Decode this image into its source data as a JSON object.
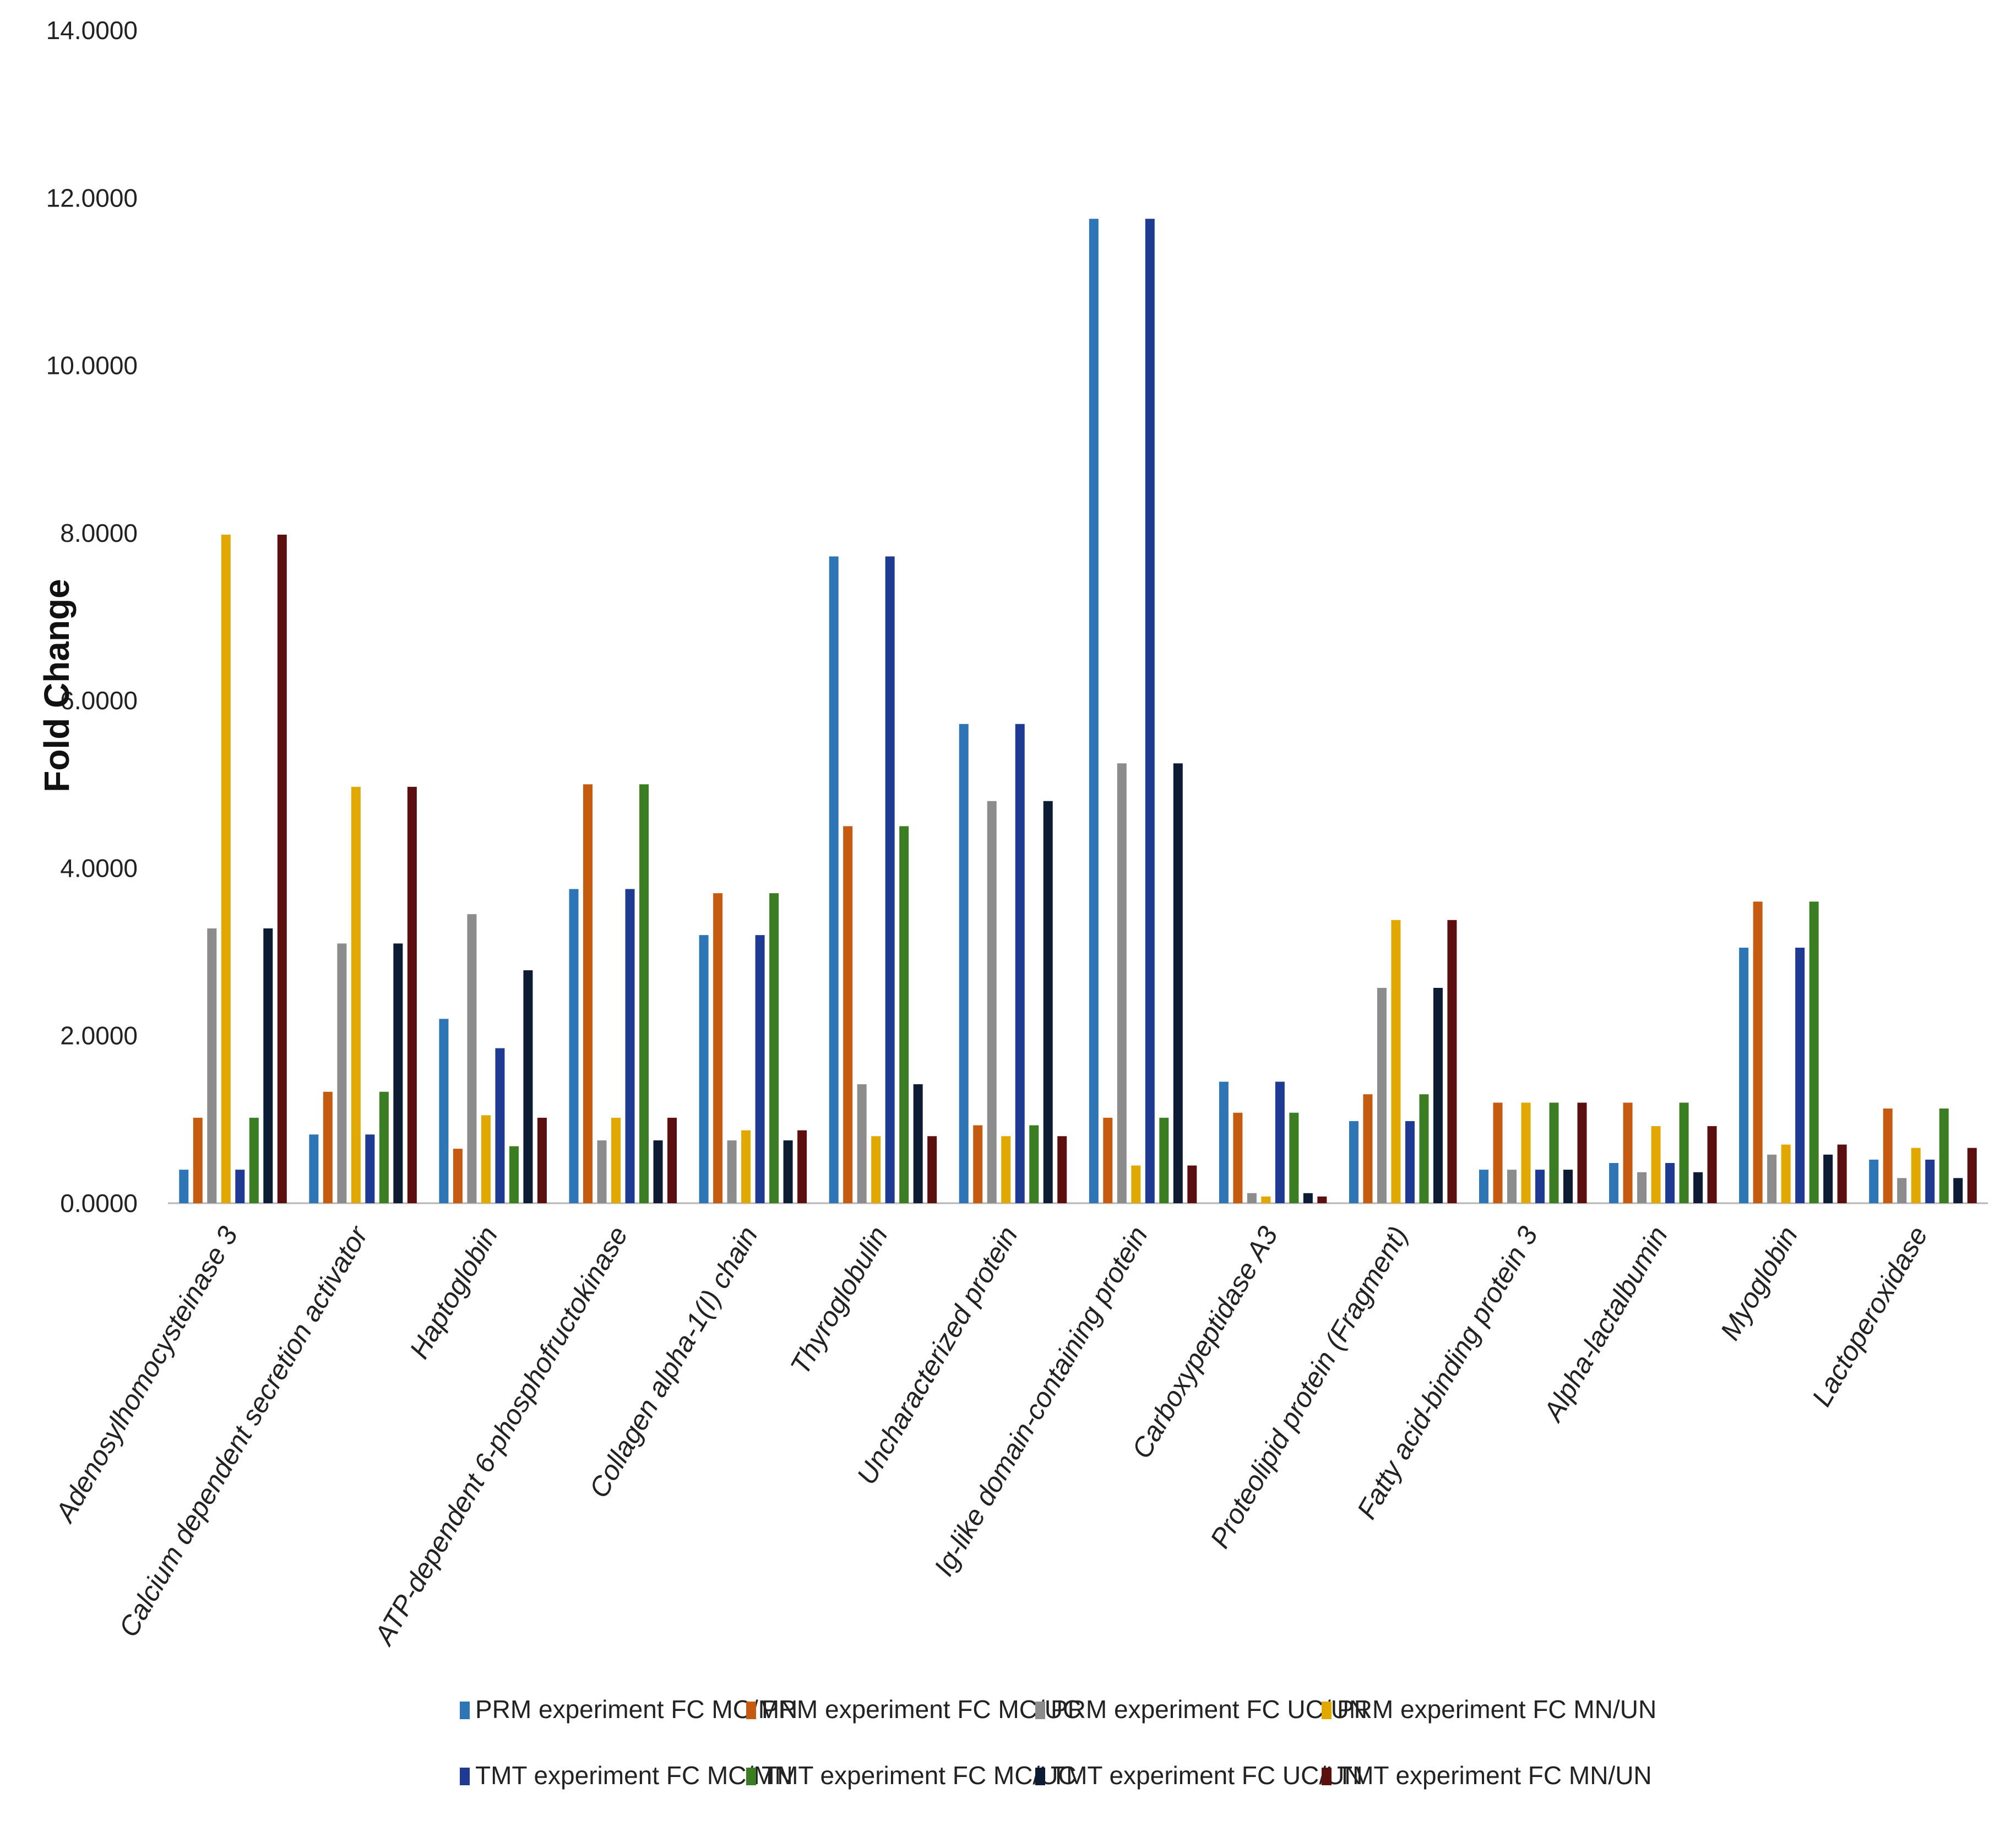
{
  "chart_data": {
    "type": "bar",
    "title": "",
    "xlabel": "",
    "ylabel": "Fold Change",
    "ylim": [
      0,
      14
    ],
    "yticks": [
      "0.0000",
      "2.0000",
      "4.0000",
      "6.0000",
      "8.0000",
      "10.0000",
      "12.0000",
      "14.0000"
    ],
    "grid": false,
    "legend_position": "bottom",
    "categories": [
      "Adenosylhomocysteinase 3",
      "Calcium dependent secretion activator",
      "Haptoglobin",
      "ATP-dependent 6-phosphofructokinase",
      "Collagen alpha-1(I) chain",
      "Thyroglobulin",
      "Uncharacterized protein",
      "Ig-like domain-containing protein",
      "Carboxypeptidase A3",
      "Proteolipid protein (Fragment)",
      "Fatty acid-binding protein 3",
      "Alpha-lactalbumin",
      "Myoglobin",
      "Lactoperoxidase"
    ],
    "series": [
      {
        "name": "PRM experiment FC MC/MN",
        "color": "#2e75b6",
        "values": [
          0.4,
          0.82,
          2.2,
          3.75,
          3.2,
          7.72,
          5.72,
          11.75,
          1.45,
          0.98,
          0.4,
          0.48,
          3.05,
          0.52
        ]
      },
      {
        "name": "PRM experiment FC MC/UC",
        "color": "#c55a11",
        "values": [
          1.02,
          1.33,
          0.65,
          5.0,
          3.7,
          4.5,
          0.93,
          1.02,
          1.08,
          1.3,
          1.2,
          1.2,
          3.6,
          1.13
        ]
      },
      {
        "name": "PRM experiment FC UC/UN",
        "color": "#8c8c8c",
        "values": [
          3.28,
          3.1,
          3.45,
          0.75,
          0.75,
          1.42,
          4.8,
          5.25,
          0.12,
          2.57,
          0.4,
          0.37,
          0.58,
          0.3
        ]
      },
      {
        "name": "PRM experiment FC MN/UN",
        "color": "#e0a800",
        "values": [
          7.98,
          4.97,
          1.05,
          1.02,
          0.87,
          0.8,
          0.8,
          0.45,
          0.08,
          3.38,
          1.2,
          0.92,
          0.7,
          0.66
        ]
      },
      {
        "name": "TMT experiment FC MC/MN",
        "color": "#1f3a93",
        "values": [
          0.4,
          0.82,
          1.85,
          3.75,
          3.2,
          7.72,
          5.72,
          11.75,
          1.45,
          0.98,
          0.4,
          0.48,
          3.05,
          0.52
        ]
      },
      {
        "name": "TMT experiment FC MC/UC",
        "color": "#3a7d22",
        "values": [
          1.02,
          1.33,
          0.68,
          5.0,
          3.7,
          4.5,
          0.93,
          1.02,
          1.08,
          1.3,
          1.2,
          1.2,
          3.6,
          1.13
        ]
      },
      {
        "name": "TMT experiment FC UC/UN",
        "color": "#0d1b33",
        "values": [
          3.28,
          3.1,
          2.78,
          0.75,
          0.75,
          1.42,
          4.8,
          5.25,
          0.12,
          2.57,
          0.4,
          0.37,
          0.58,
          0.3
        ]
      },
      {
        "name": "TMT experiment FC MN/UN",
        "color": "#5c0f0f",
        "values": [
          7.98,
          4.97,
          1.02,
          1.02,
          0.87,
          0.8,
          0.8,
          0.45,
          0.08,
          3.38,
          1.2,
          0.92,
          0.7,
          0.66
        ]
      }
    ]
  }
}
